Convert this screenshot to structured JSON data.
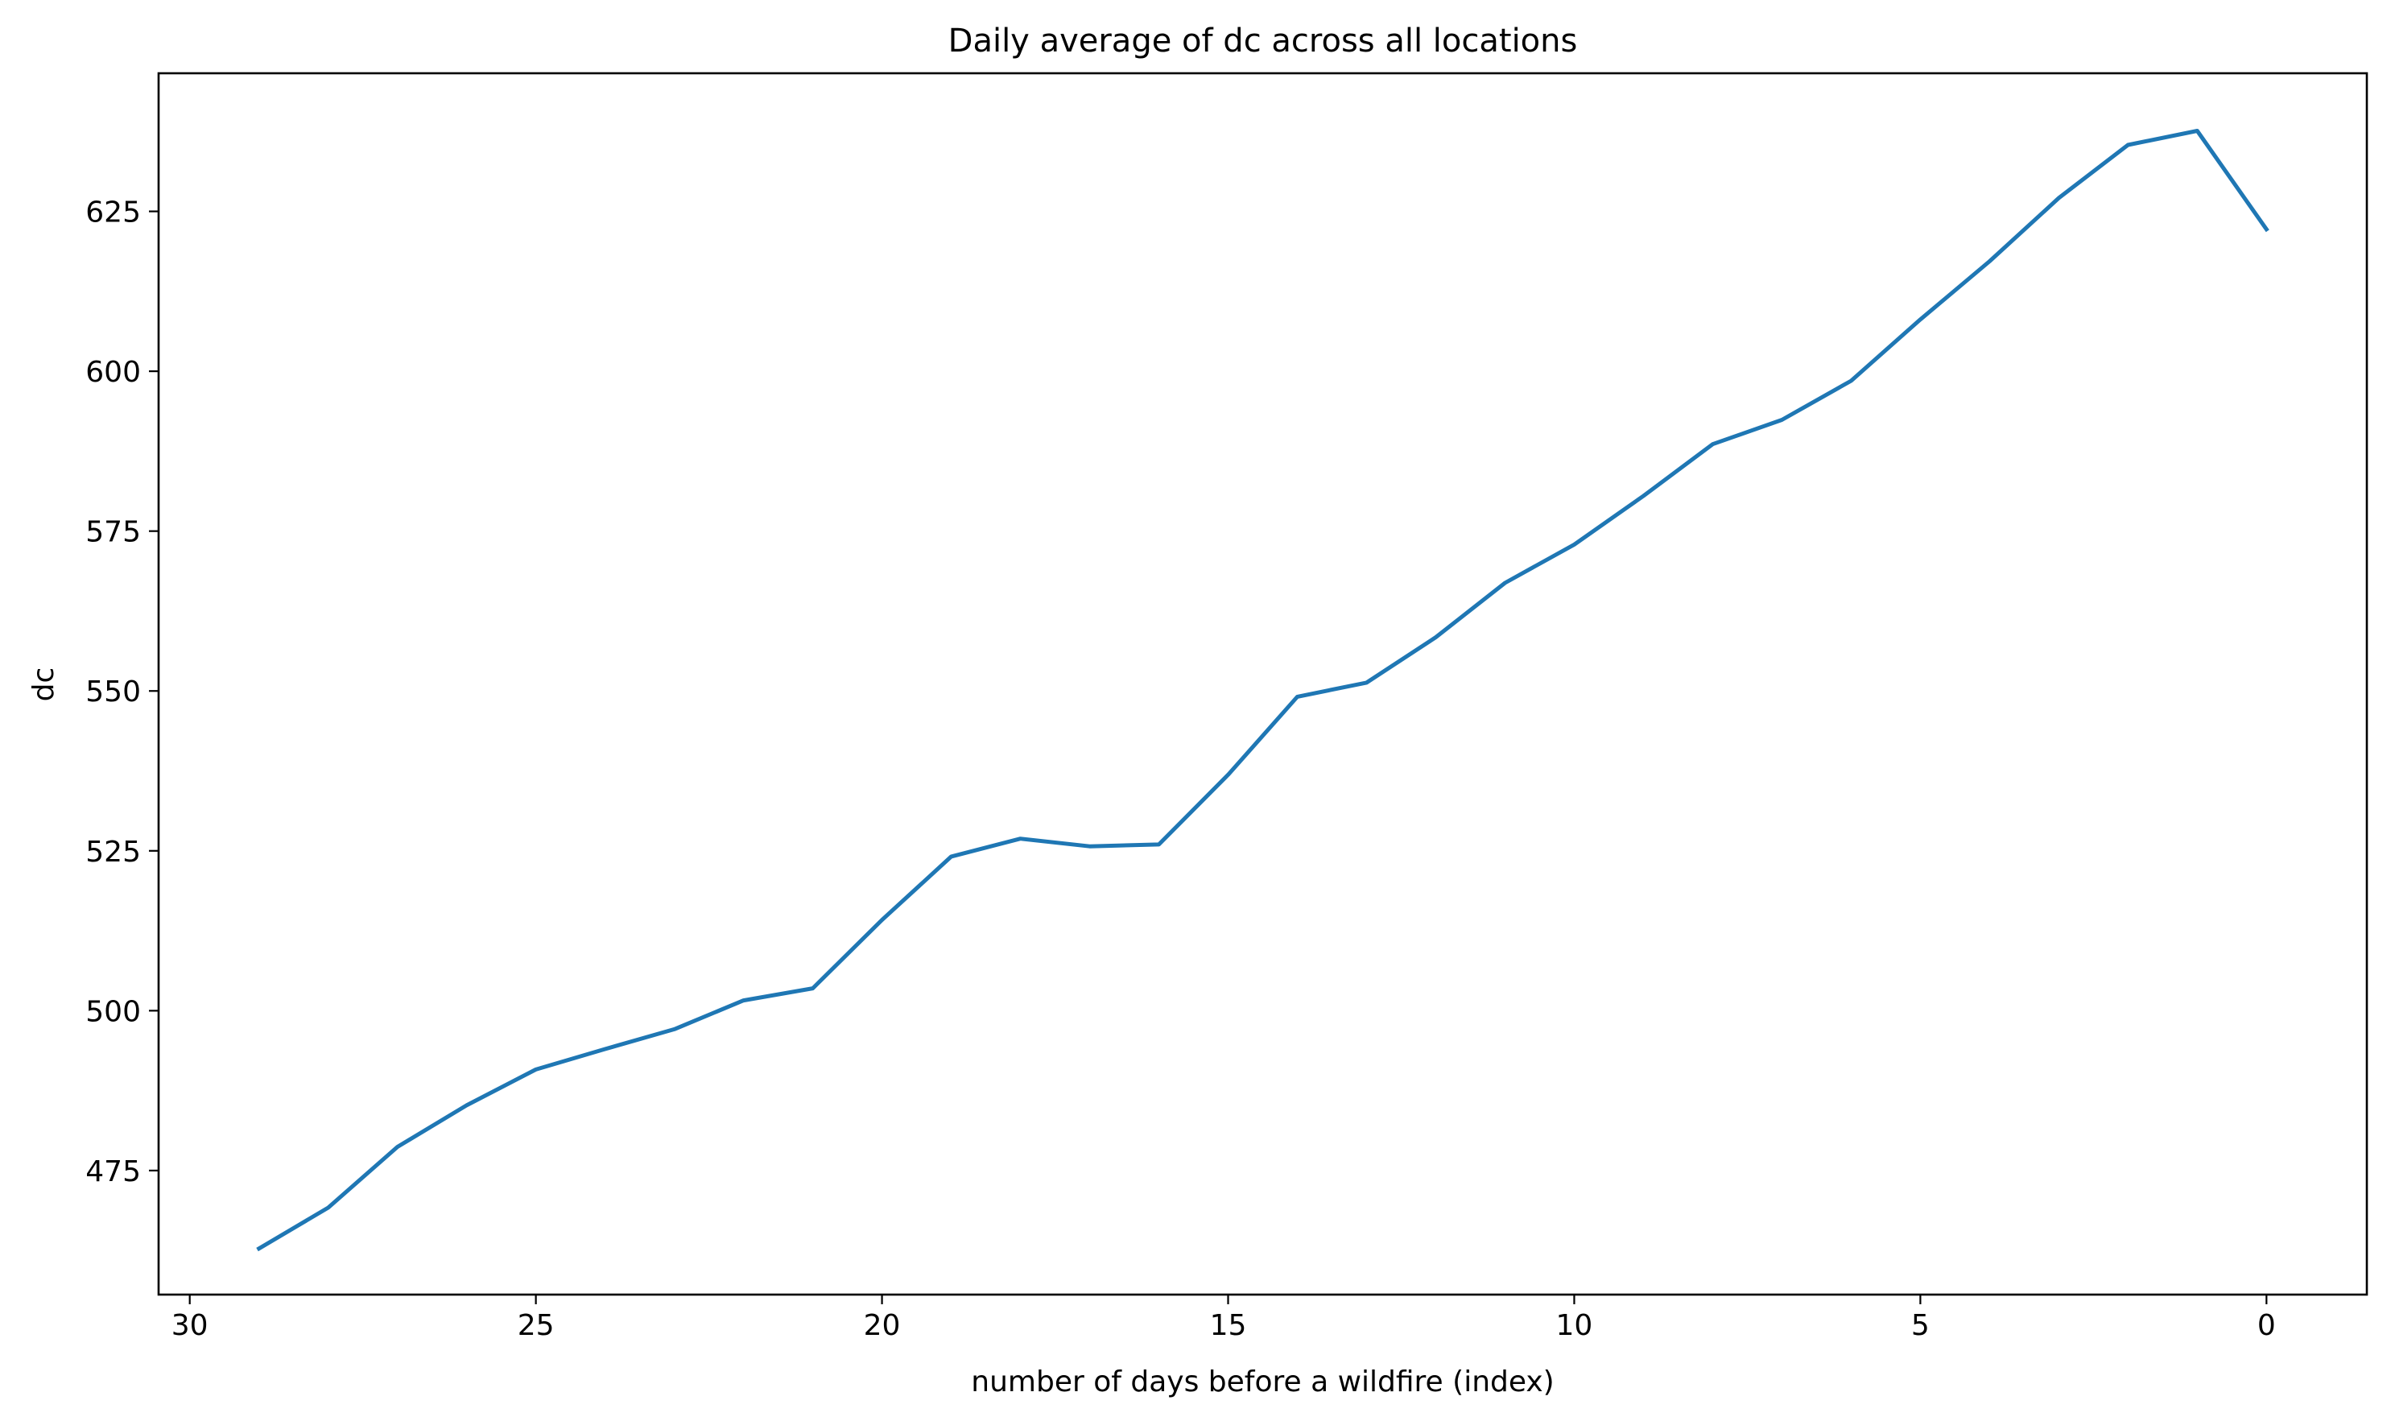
{
  "chart_data": {
    "type": "line",
    "title": "Daily average of dc across all locations",
    "xlabel": "number of days before a wildfire (index)",
    "ylabel": "dc",
    "x_inverted": true,
    "xlim": [
      30.45,
      -1.45
    ],
    "ylim": [
      455.6,
      646.6
    ],
    "xticks": [
      30,
      25,
      20,
      15,
      10,
      5,
      0
    ],
    "yticks": [
      475,
      500,
      525,
      550,
      575,
      600,
      625
    ],
    "grid": false,
    "legend": "none",
    "series": [
      {
        "color": "#1f77b4",
        "x": [
          29,
          28,
          27,
          26,
          25,
          24,
          23,
          22,
          21,
          20,
          19,
          18,
          17,
          16,
          15,
          14,
          13,
          12,
          11,
          10,
          9,
          8,
          7,
          6,
          5,
          4,
          3,
          2,
          1,
          0
        ],
        "values": [
          462.8,
          469.2,
          478.7,
          485.2,
          490.8,
          494.0,
          497.1,
          501.6,
          503.5,
          514.2,
          524.1,
          526.9,
          525.7,
          526.0,
          536.9,
          549.1,
          551.3,
          558.4,
          566.9,
          572.9,
          580.5,
          588.6,
          592.4,
          598.5,
          608.1,
          617.2,
          627.1,
          635.4,
          637.6,
          622.2
        ]
      }
    ]
  }
}
